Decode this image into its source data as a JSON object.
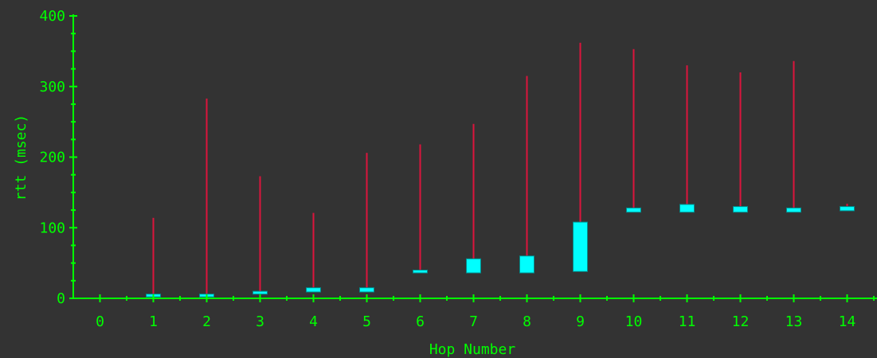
{
  "chart_data": {
    "type": "box",
    "xlabel": "Hop Number",
    "ylabel": "rtt (msec)",
    "xlim": [
      -0.5,
      14.5
    ],
    "ylim": [
      0,
      400
    ],
    "x_ticks": [
      0,
      1,
      2,
      3,
      4,
      5,
      6,
      7,
      8,
      9,
      10,
      11,
      12,
      13,
      14
    ],
    "y_ticks": [
      0,
      100,
      200,
      300,
      400
    ],
    "colors": {
      "background": "#333333",
      "axis": "#00ff00",
      "whisker": "#dc143c",
      "box": "#00ffff"
    },
    "hops": [
      {
        "hop": 1,
        "box_low": 2,
        "box_high": 6,
        "max": 114
      },
      {
        "hop": 2,
        "box_low": 2,
        "box_high": 6,
        "max": 283
      },
      {
        "hop": 3,
        "box_low": 6,
        "box_high": 10,
        "max": 173
      },
      {
        "hop": 4,
        "box_low": 9,
        "box_high": 15,
        "max": 121
      },
      {
        "hop": 5,
        "box_low": 9,
        "box_high": 15,
        "max": 206
      },
      {
        "hop": 6,
        "box_low": 36,
        "box_high": 40,
        "max": 218
      },
      {
        "hop": 7,
        "box_low": 36,
        "box_high": 56,
        "max": 247
      },
      {
        "hop": 8,
        "box_low": 36,
        "box_high": 60,
        "max": 315
      },
      {
        "hop": 9,
        "box_low": 38,
        "box_high": 108,
        "max": 362
      },
      {
        "hop": 10,
        "box_low": 122,
        "box_high": 128,
        "max": 353
      },
      {
        "hop": 11,
        "box_low": 122,
        "box_high": 133,
        "max": 330
      },
      {
        "hop": 12,
        "box_low": 122,
        "box_high": 130,
        "max": 320
      },
      {
        "hop": 13,
        "box_low": 122,
        "box_high": 128,
        "max": 336
      },
      {
        "hop": 14,
        "box_low": 124,
        "box_high": 130,
        "max": 134
      }
    ]
  }
}
